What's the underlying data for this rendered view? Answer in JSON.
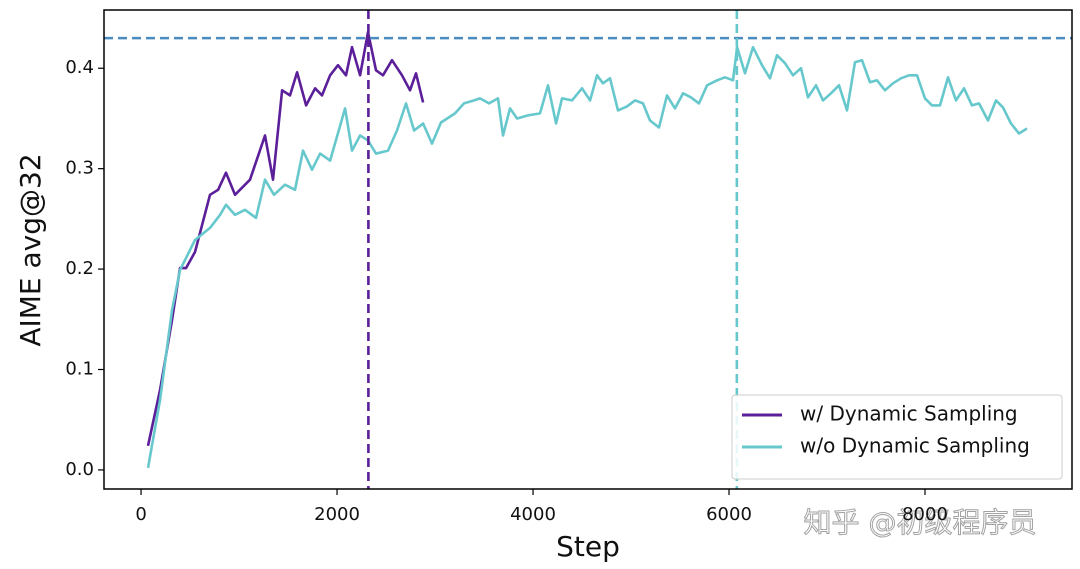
{
  "chart_data": {
    "type": "line",
    "xlabel": "Step",
    "ylabel": "AIME avg@32",
    "xlim": [
      -378,
      9500
    ],
    "ylim": [
      -0.019,
      0.458
    ],
    "xticks": [
      0,
      2000,
      4000,
      6000,
      8000
    ],
    "yticks": [
      {
        "value": 0,
        "label": "0.0"
      },
      0.1,
      0.2,
      0.3,
      0.4
    ],
    "grid": false,
    "legend": "lower right",
    "reference_lines": [
      {
        "axis": "y",
        "value": 0.43,
        "color": "#4a8bc0"
      },
      {
        "axis": "x",
        "value": 2320,
        "color": "#5b1f9a"
      },
      {
        "axis": "x",
        "value": 6080,
        "color": "#66c8cc"
      }
    ],
    "series": [
      {
        "name": "w/ Dynamic Sampling",
        "color": "#5b1f9a",
        "x": [
          71,
          194,
          316,
          398,
          459,
          551,
          704,
          786,
          867,
          959,
          1112,
          1265,
          1347,
          1439,
          1520,
          1592,
          1684,
          1776,
          1847,
          1929,
          2010,
          2092,
          2153,
          2235,
          2316,
          2398,
          2469,
          2561,
          2663,
          2745,
          2806,
          2878
        ],
        "values": [
          0.024,
          0.08,
          0.149,
          0.201,
          0.201,
          0.217,
          0.274,
          0.279,
          0.296,
          0.274,
          0.289,
          0.333,
          0.289,
          0.378,
          0.373,
          0.396,
          0.363,
          0.38,
          0.373,
          0.393,
          0.403,
          0.393,
          0.421,
          0.393,
          0.436,
          0.398,
          0.393,
          0.408,
          0.393,
          0.378,
          0.395,
          0.366
        ]
      },
      {
        "name": "w/o Dynamic Sampling",
        "color": "#66c8cc",
        "x": [
          71,
          194,
          316,
          398,
          551,
          704,
          806,
          867,
          959,
          1061,
          1173,
          1265,
          1357,
          1469,
          1571,
          1653,
          1745,
          1827,
          1929,
          2082,
          2153,
          2235,
          2316,
          2398,
          2520,
          2612,
          2704,
          2786,
          2878,
          2969,
          3061,
          3204,
          3296,
          3398,
          3459,
          3551,
          3643,
          3694,
          3765,
          3837,
          3949,
          4071,
          4153,
          4235,
          4296,
          4398,
          4500,
          4582,
          4653,
          4714,
          4786,
          4867,
          4959,
          5041,
          5122,
          5194,
          5286,
          5367,
          5449,
          5531,
          5612,
          5694,
          5776,
          5878,
          5959,
          6041,
          6082,
          6163,
          6245,
          6337,
          6418,
          6490,
          6571,
          6653,
          6735,
          6806,
          6888,
          6959,
          7041,
          7122,
          7204,
          7286,
          7357,
          7439,
          7510,
          7592,
          7673,
          7755,
          7837,
          7918,
          8000,
          8071,
          8153,
          8235,
          8316,
          8398,
          8480,
          8551,
          8643,
          8724,
          8796,
          8878,
          8959,
          9041
        ],
        "values": [
          0.002,
          0.07,
          0.159,
          0.199,
          0.229,
          0.241,
          0.254,
          0.264,
          0.254,
          0.259,
          0.251,
          0.289,
          0.274,
          0.284,
          0.279,
          0.318,
          0.299,
          0.315,
          0.308,
          0.36,
          0.318,
          0.333,
          0.328,
          0.315,
          0.318,
          0.338,
          0.365,
          0.338,
          0.345,
          0.325,
          0.346,
          0.355,
          0.365,
          0.368,
          0.37,
          0.365,
          0.37,
          0.333,
          0.36,
          0.35,
          0.353,
          0.355,
          0.383,
          0.345,
          0.37,
          0.368,
          0.38,
          0.368,
          0.393,
          0.385,
          0.39,
          0.358,
          0.362,
          0.368,
          0.365,
          0.348,
          0.341,
          0.373,
          0.36,
          0.375,
          0.371,
          0.365,
          0.383,
          0.388,
          0.391,
          0.388,
          0.421,
          0.395,
          0.421,
          0.403,
          0.39,
          0.413,
          0.405,
          0.393,
          0.4,
          0.371,
          0.383,
          0.368,
          0.375,
          0.383,
          0.358,
          0.406,
          0.408,
          0.386,
          0.388,
          0.378,
          0.385,
          0.39,
          0.393,
          0.393,
          0.37,
          0.363,
          0.363,
          0.391,
          0.368,
          0.38,
          0.363,
          0.365,
          0.348,
          0.368,
          0.361,
          0.345,
          0.335,
          0.34
        ]
      }
    ]
  },
  "watermark": "知乎 @初级程序员"
}
